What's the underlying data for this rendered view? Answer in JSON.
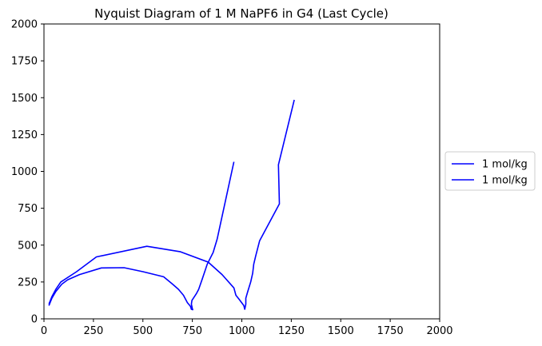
{
  "chart_data": {
    "type": "line",
    "title": "Nyquist Diagram of 1 M NaPF6 in G4 (Last Cycle)",
    "xlabel": "",
    "ylabel": "",
    "xlim": [
      0,
      2000
    ],
    "ylim": [
      0,
      2000
    ],
    "xticks": [
      "0",
      "250",
      "500",
      "750",
      "1000",
      "1250",
      "1500",
      "1750",
      "2000"
    ],
    "yticks": [
      "0",
      "250",
      "500",
      "750",
      "1000",
      "1250",
      "1500",
      "1750",
      "2000"
    ],
    "grid": false,
    "legend_position": "center-right-outside",
    "series": [
      {
        "name": "1 mol/kg",
        "color": "#0000ff",
        "points": [
          [
            25,
            90
          ],
          [
            40,
            140
          ],
          [
            60,
            185
          ],
          [
            90,
            235
          ],
          [
            120,
            265
          ],
          [
            180,
            300
          ],
          [
            290,
            345
          ],
          [
            405,
            347
          ],
          [
            500,
            320
          ],
          [
            605,
            285
          ],
          [
            650,
            235
          ],
          [
            680,
            200
          ],
          [
            705,
            160
          ],
          [
            725,
            110
          ],
          [
            740,
            85
          ],
          [
            745,
            65
          ],
          [
            752,
            62
          ],
          [
            750,
            70
          ],
          [
            745,
            100
          ],
          [
            748,
            125
          ],
          [
            770,
            170
          ],
          [
            782,
            200
          ],
          [
            800,
            270
          ],
          [
            825,
            370
          ],
          [
            855,
            450
          ],
          [
            875,
            540
          ],
          [
            960,
            1065
          ]
        ]
      },
      {
        "name": "1 mol/kg",
        "color": "#0000ff",
        "points": [
          [
            25,
            100
          ],
          [
            40,
            150
          ],
          [
            60,
            200
          ],
          [
            85,
            250
          ],
          [
            165,
            320
          ],
          [
            265,
            420
          ],
          [
            520,
            492
          ],
          [
            690,
            455
          ],
          [
            830,
            385
          ],
          [
            900,
            300
          ],
          [
            960,
            210
          ],
          [
            970,
            160
          ],
          [
            985,
            135
          ],
          [
            1010,
            90
          ],
          [
            1015,
            65
          ],
          [
            1020,
            100
          ],
          [
            1020,
            140
          ],
          [
            1030,
            185
          ],
          [
            1045,
            250
          ],
          [
            1055,
            310
          ],
          [
            1060,
            370
          ],
          [
            1070,
            425
          ],
          [
            1090,
            530
          ],
          [
            1190,
            780
          ],
          [
            1185,
            1045
          ],
          [
            1265,
            1485
          ]
        ]
      }
    ]
  }
}
